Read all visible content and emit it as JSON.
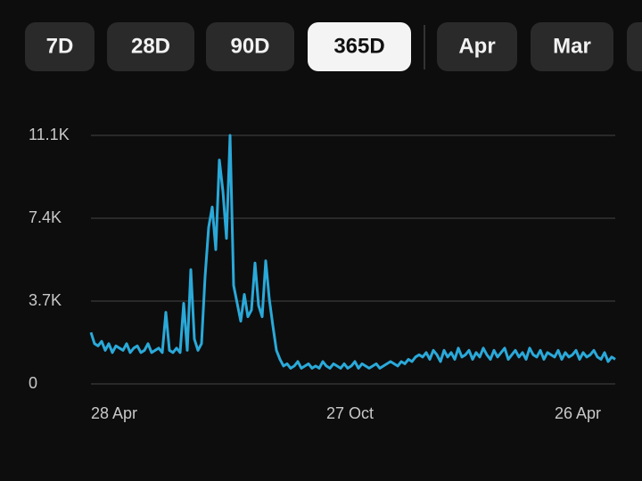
{
  "buttons": [
    "7D",
    "28D",
    "90D",
    "365D",
    "Apr",
    "Mar"
  ],
  "chart_data": {
    "type": "line",
    "color": "#2aa9d9",
    "grid": true,
    "ylim": [
      0,
      11100
    ],
    "yticks": [
      0,
      {
        "value": 3700,
        "label": "3.7K"
      },
      {
        "value": 7400,
        "label": "7.4K"
      },
      {
        "value": 11100,
        "label": "11.1K"
      }
    ],
    "categories": [
      "28 Apr",
      null,
      null,
      null,
      null,
      null,
      null,
      null,
      null,
      null,
      null,
      null,
      null,
      null,
      null,
      null,
      null,
      null,
      null,
      null,
      null,
      null,
      null,
      null,
      null,
      null,
      null,
      null,
      null,
      null,
      null,
      null,
      null,
      null,
      null,
      null,
      null,
      null,
      null,
      null,
      null,
      null,
      null,
      null,
      null,
      null,
      null,
      null,
      null,
      null,
      null,
      null,
      null,
      null,
      null,
      null,
      null,
      null,
      null,
      null,
      null,
      null,
      null,
      null,
      null,
      null,
      "27 Oct",
      null,
      null,
      null,
      null,
      null,
      null,
      null,
      null,
      null,
      null,
      null,
      null,
      null,
      null,
      null,
      null,
      null,
      null,
      null,
      null,
      null,
      null,
      null,
      null,
      null,
      null,
      null,
      null,
      null,
      null,
      null,
      null,
      null,
      null,
      null,
      null,
      null,
      null,
      null,
      null,
      null,
      null,
      null,
      null,
      null,
      null,
      null,
      null,
      null,
      null,
      null,
      null,
      null,
      null,
      null,
      null,
      null,
      null,
      null,
      null,
      null,
      null,
      null,
      "26 Apr",
      null,
      null,
      null,
      null,
      null,
      null,
      null,
      null,
      null,
      null,
      null,
      null,
      null,
      null,
      null,
      null,
      null
    ],
    "values": [
      2300,
      1800,
      1700,
      1900,
      1500,
      1800,
      1400,
      1700,
      1600,
      1500,
      1800,
      1400,
      1600,
      1700,
      1400,
      1500,
      1800,
      1400,
      1500,
      1600,
      1400,
      3200,
      1500,
      1400,
      1600,
      1400,
      3600,
      1500,
      5100,
      2000,
      1500,
      1800,
      4800,
      7000,
      7900,
      6000,
      10000,
      8600,
      6500,
      11100,
      4400,
      3600,
      2800,
      4000,
      3000,
      3300,
      5400,
      3500,
      3000,
      5500,
      3800,
      2600,
      1500,
      1100,
      800,
      900,
      700,
      800,
      1000,
      700,
      800,
      900,
      700,
      800,
      700,
      1000,
      800,
      700,
      900,
      800,
      700,
      900,
      700,
      800,
      1000,
      700,
      900,
      800,
      700,
      800,
      900,
      700,
      800,
      900,
      1000,
      900,
      800,
      1000,
      900,
      1100,
      1000,
      1200,
      1300,
      1200,
      1400,
      1100,
      1500,
      1300,
      1000,
      1500,
      1200,
      1400,
      1100,
      1600,
      1200,
      1300,
      1500,
      1100,
      1400,
      1200,
      1600,
      1300,
      1100,
      1500,
      1200,
      1400,
      1600,
      1100,
      1300,
      1500,
      1200,
      1400,
      1100,
      1600,
      1300,
      1200,
      1500,
      1100,
      1400,
      1300,
      1200,
      1500,
      1100,
      1400,
      1200,
      1300,
      1500,
      1100,
      1400,
      1200,
      1300,
      1500,
      1200,
      1100,
      1400,
      1000,
      1200,
      1100
    ]
  }
}
